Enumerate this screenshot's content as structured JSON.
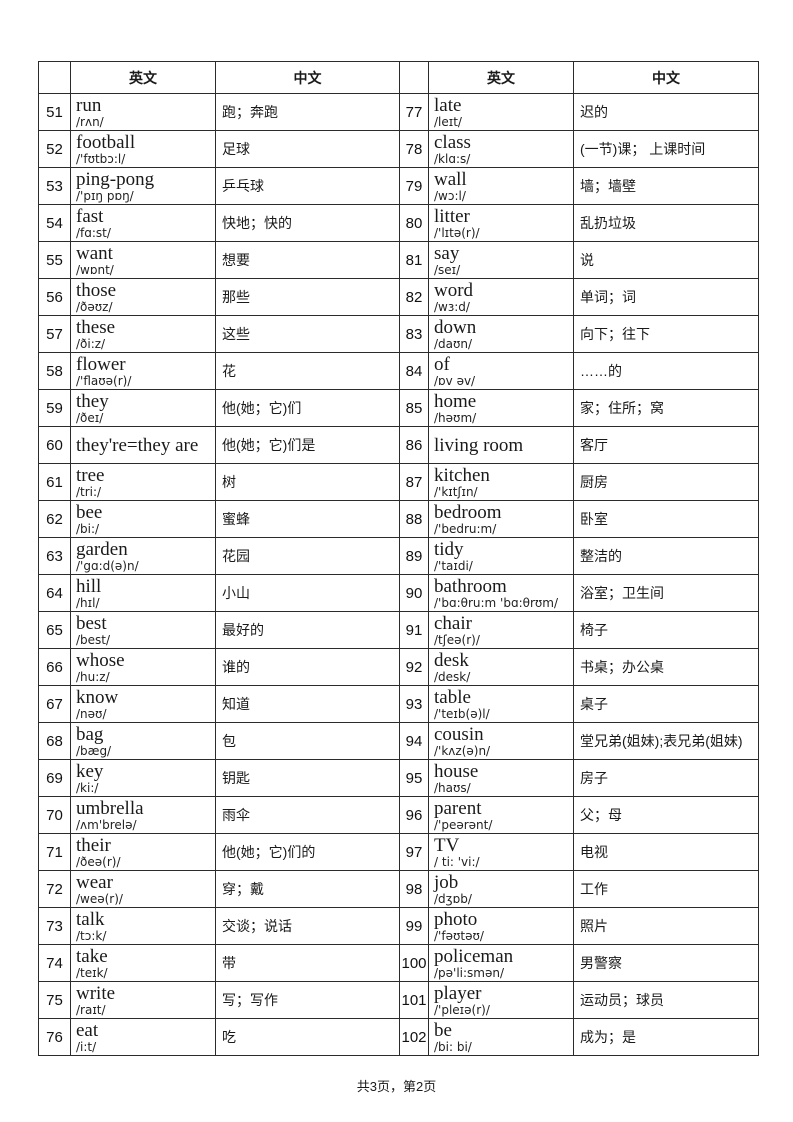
{
  "page": {
    "footer": "共3页，第2页"
  },
  "table": {
    "headers": {
      "english": "英文",
      "chinese": "中文"
    },
    "left_rows": [
      {
        "num": "51",
        "en": "run",
        "ipa": "/rʌn/",
        "zh": "跑；奔跑"
      },
      {
        "num": "52",
        "en": "football",
        "ipa": "/'fʊtbɔ:l/",
        "zh": "足球"
      },
      {
        "num": "53",
        "en": "ping-pong",
        "ipa": "/'pɪŋ pɒŋ/",
        "zh": "乒乓球"
      },
      {
        "num": "54",
        "en": "fast",
        "ipa": "/fɑ:st/",
        "zh": "快地；快的"
      },
      {
        "num": "55",
        "en": "want",
        "ipa": "/wɒnt/",
        "zh": "想要"
      },
      {
        "num": "56",
        "en": "those",
        "ipa": "/ðəʊz/",
        "zh": "那些"
      },
      {
        "num": "57",
        "en": "these",
        "ipa": "/ði:z/",
        "zh": "这些"
      },
      {
        "num": "58",
        "en": "flower",
        "ipa": "/'flaʊə(r)/",
        "zh": "花"
      },
      {
        "num": "59",
        "en": "they",
        "ipa": "/ðeɪ/",
        "zh": "他(她；它)们"
      },
      {
        "num": "60",
        "en": "they're=they are",
        "ipa": "",
        "zh": "他(她；它)们是"
      },
      {
        "num": "61",
        "en": "tree",
        "ipa": "/tri:/",
        "zh": "树"
      },
      {
        "num": "62",
        "en": "bee",
        "ipa": "/bi:/",
        "zh": "蜜蜂"
      },
      {
        "num": "63",
        "en": "garden",
        "ipa": "/'gɑ:d(ə)n/",
        "zh": "花园"
      },
      {
        "num": "64",
        "en": "hill",
        "ipa": "/hɪl/",
        "zh": "小山"
      },
      {
        "num": "65",
        "en": "best",
        "ipa": "/best/",
        "zh": "最好的"
      },
      {
        "num": "66",
        "en": "whose",
        "ipa": "/hu:z/",
        "zh": "谁的"
      },
      {
        "num": "67",
        "en": "know",
        "ipa": "/nəʊ/",
        "zh": "知道"
      },
      {
        "num": "68",
        "en": "bag",
        "ipa": "/bæg/",
        "zh": "包"
      },
      {
        "num": "69",
        "en": "key",
        "ipa": "/ki:/",
        "zh": "钥匙"
      },
      {
        "num": "70",
        "en": "umbrella",
        "ipa": "/ʌm'brelə/",
        "zh": "雨伞"
      },
      {
        "num": "71",
        "en": "their",
        "ipa": "/ðeə(r)/",
        "zh": "他(她；它)们的"
      },
      {
        "num": "72",
        "en": "wear",
        "ipa": "/weə(r)/",
        "zh": "穿；戴"
      },
      {
        "num": "73",
        "en": "talk",
        "ipa": "/tɔ:k/",
        "zh": "交谈；说话"
      },
      {
        "num": "74",
        "en": "take",
        "ipa": "/teɪk/",
        "zh": "带"
      },
      {
        "num": "75",
        "en": "write",
        "ipa": "/raɪt/",
        "zh": "写；写作"
      },
      {
        "num": "76",
        "en": "eat",
        "ipa": "/i:t/",
        "zh": "吃"
      }
    ],
    "right_rows": [
      {
        "num": "77",
        "en": "late",
        "ipa": "/leɪt/",
        "zh": "迟的"
      },
      {
        "num": "78",
        "en": "class",
        "ipa": "/klɑ:s/",
        "zh": "(一节)课； 上课时间"
      },
      {
        "num": "79",
        "en": "wall",
        "ipa": "/wɔ:l/",
        "zh": "墙；墙壁"
      },
      {
        "num": "80",
        "en": "litter",
        "ipa": "/'lɪtə(r)/",
        "zh": "乱扔垃圾"
      },
      {
        "num": "81",
        "en": "say",
        "ipa": "/seɪ/",
        "zh": "说"
      },
      {
        "num": "82",
        "en": "word",
        "ipa": "/wɜ:d/",
        "zh": "单词；词"
      },
      {
        "num": "83",
        "en": "down",
        "ipa": "/daʊn/",
        "zh": "向下；往下"
      },
      {
        "num": "84",
        "en": "of",
        "ipa": "/ɒv əv/",
        "zh": "……的"
      },
      {
        "num": "85",
        "en": "home",
        "ipa": "/həʊm/",
        "zh": "家；住所；窝"
      },
      {
        "num": "86",
        "en": "living room",
        "ipa": "",
        "zh": "客厅"
      },
      {
        "num": "87",
        "en": "kitchen",
        "ipa": "/'kɪtʃɪn/",
        "zh": "厨房"
      },
      {
        "num": "88",
        "en": "bedroom",
        "ipa": "/'bedru:m/",
        "zh": "卧室"
      },
      {
        "num": "89",
        "en": "tidy",
        "ipa": "/'taɪdi/",
        "zh": "整洁的"
      },
      {
        "num": "90",
        "en": "bathroom",
        "ipa": "/'bɑ:θru:m 'bɑ:θrʊm/",
        "zh": "浴室；卫生间"
      },
      {
        "num": "91",
        "en": "chair",
        "ipa": "/tʃeə(r)/",
        "zh": "椅子"
      },
      {
        "num": "92",
        "en": "desk",
        "ipa": "/desk/",
        "zh": "书桌；办公桌"
      },
      {
        "num": "93",
        "en": "table",
        "ipa": "/'teɪb(ə)l/",
        "zh": "桌子"
      },
      {
        "num": "94",
        "en": "cousin",
        "ipa": "/'kʌz(ə)n/",
        "zh": "堂兄弟(姐妹);表兄弟(姐妹)"
      },
      {
        "num": "95",
        "en": "house",
        "ipa": "/haʊs/",
        "zh": "房子"
      },
      {
        "num": "96",
        "en": "parent",
        "ipa": "/'peərənt/",
        "zh": "父；母"
      },
      {
        "num": "97",
        "en": "TV",
        "ipa": "/ ti: 'vi:/",
        "zh": "电视"
      },
      {
        "num": "98",
        "en": "job",
        "ipa": "/dʒɒb/",
        "zh": "工作"
      },
      {
        "num": "99",
        "en": "photo",
        "ipa": "/'fəʊtəʊ/",
        "zh": "照片"
      },
      {
        "num": "100",
        "en": "policeman",
        "ipa": "/pə'li:smən/",
        "zh": "男警察"
      },
      {
        "num": "101",
        "en": "player",
        "ipa": "/'pleɪə(r)/",
        "zh": "运动员；球员"
      },
      {
        "num": "102",
        "en": "be",
        "ipa": "/bi:  bi/",
        "zh": "成为；是"
      }
    ]
  }
}
